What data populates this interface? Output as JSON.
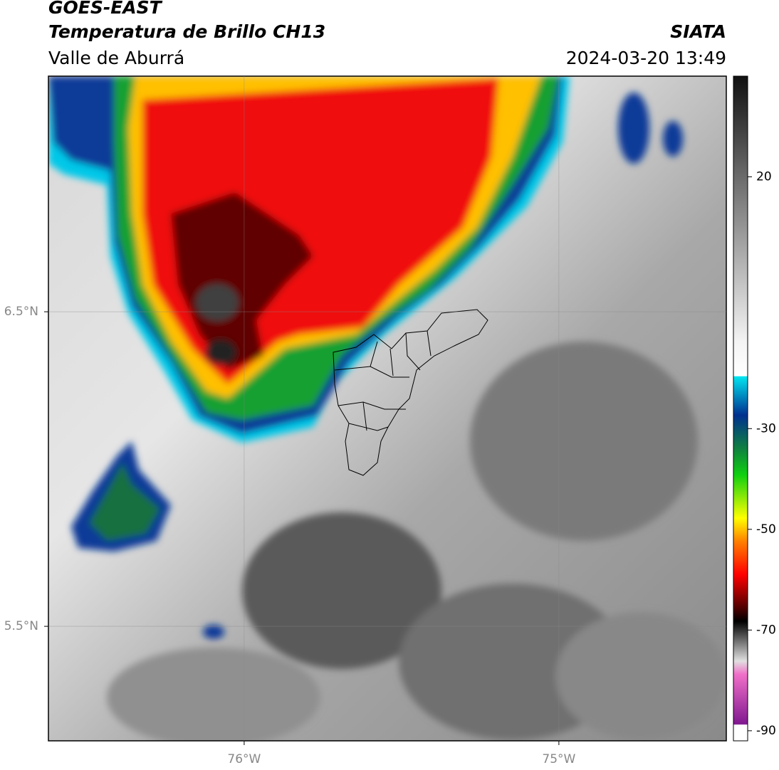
{
  "map": {
    "title": "GOES-EAST",
    "subtitle": "Temperatura de Brillo CH13",
    "region": "Valle de Aburrá",
    "source": "SIATA",
    "datetime": "2024-03-20 13:49",
    "xlim": [
      -76.622,
      -74.468
    ],
    "ylim": [
      5.136,
      7.249
    ],
    "xticks": [
      {
        "value": -76,
        "label": "76°W"
      },
      {
        "value": -75,
        "label": "75°W"
      }
    ],
    "yticks": [
      {
        "value": 6.5,
        "label": "6.5°N"
      },
      {
        "value": 5.5,
        "label": "5.5°N"
      }
    ],
    "grid": true,
    "colorbar": {
      "lim": [
        -92,
        40
      ],
      "ticks": [
        20,
        -30,
        -50,
        -70,
        -90
      ]
    }
  }
}
